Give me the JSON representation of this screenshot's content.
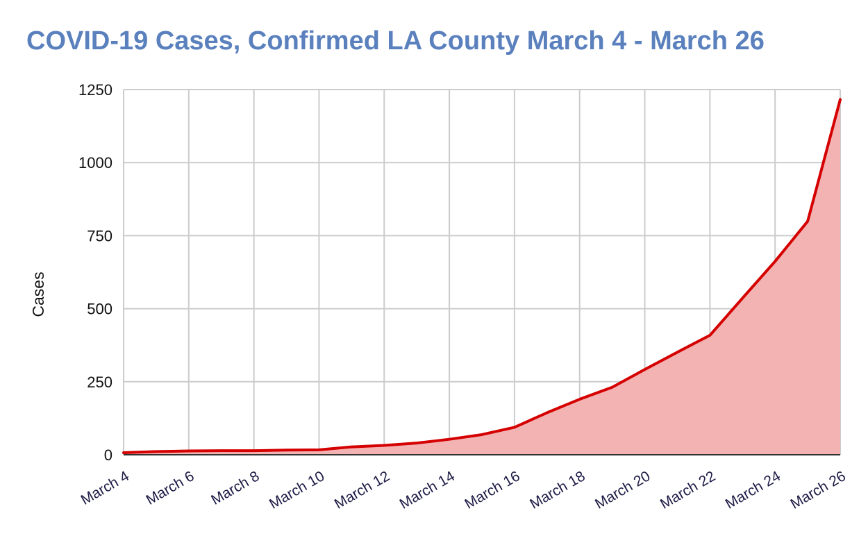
{
  "chart_data": {
    "type": "area",
    "title": "COVID-19 Cases, Confirmed LA County March 4 - March 26",
    "xlabel": "",
    "ylabel": "Cases",
    "ylim": [
      0,
      1250
    ],
    "yticks": [
      0,
      250,
      500,
      750,
      1000,
      1250
    ],
    "grid": true,
    "legend": "none",
    "x": [
      "March 4",
      "March 5",
      "March 6",
      "March 7",
      "March 8",
      "March 9",
      "March 10",
      "March 11",
      "March 12",
      "March 13",
      "March 14",
      "March 15",
      "March 16",
      "March 17",
      "March 18",
      "March 19",
      "March 20",
      "March 21",
      "March 22",
      "March 23",
      "March 24",
      "March 25",
      "March 26"
    ],
    "xtick_labels": [
      "March 4",
      "March 6",
      "March 8",
      "March 10",
      "March 12",
      "March 14",
      "March 16",
      "March 18",
      "March 20",
      "March 22",
      "March 24",
      "March 26"
    ],
    "series": [
      {
        "values": [
          7,
          11,
          13,
          14,
          14,
          16,
          17,
          27,
          32,
          40,
          53,
          69,
          94,
          144,
          190,
          231,
          292,
          351,
          409,
          536,
          662,
          799,
          1216
        ]
      }
    ],
    "colors": {
      "line": "#d50000",
      "fill": "#f4b3b3",
      "title": "#5a80bd",
      "grid": "#cccccc",
      "baseline": "#333333",
      "xtick": "#1c1a45"
    }
  }
}
